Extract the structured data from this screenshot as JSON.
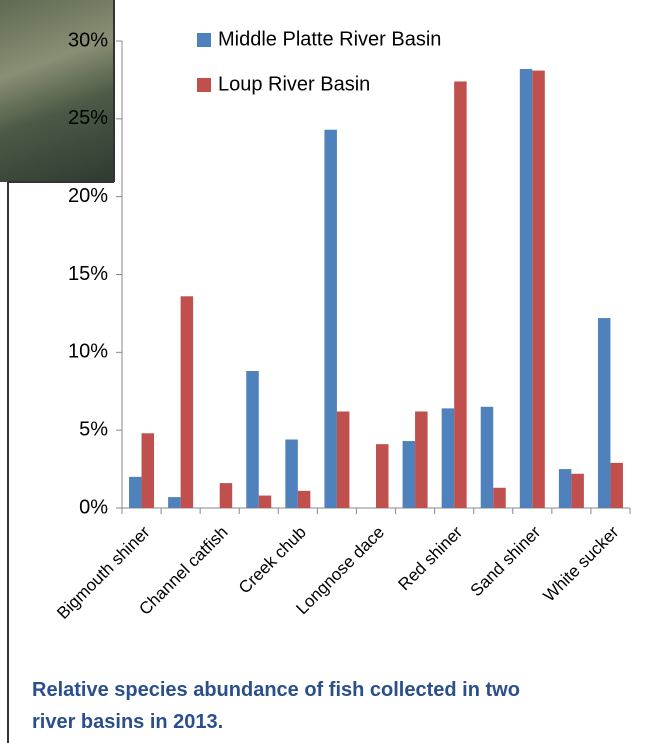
{
  "chart_data": {
    "type": "bar",
    "title": "Relative species abundance of fish collected in two river basins in 2013.",
    "categories": [
      "Bigmouth shiner",
      null,
      "Channel catfish",
      null,
      "Creek chub",
      null,
      "Longnose dace",
      null,
      "Red shiner",
      null,
      "Sand shiner",
      null,
      "White sucker"
    ],
    "series": [
      {
        "name": "Middle Platte River Basin",
        "color": "#4f81bd",
        "values": [
          2.0,
          0.7,
          0,
          8.8,
          4.4,
          24.3,
          0,
          4.3,
          6.4,
          6.5,
          28.2,
          2.5,
          12.2
        ]
      },
      {
        "name": "Loup River Basin",
        "color": "#c0504d",
        "values": [
          4.8,
          13.6,
          1.6,
          0.8,
          1.1,
          6.2,
          4.1,
          6.2,
          27.4,
          1.3,
          28.1,
          2.2,
          2.9
        ]
      }
    ],
    "ylim": [
      0,
      30
    ],
    "yticks": [
      {
        "value": 0,
        "label": "0%"
      },
      {
        "value": 5,
        "label": "5%"
      },
      {
        "value": 10,
        "label": "10%"
      },
      {
        "value": 15,
        "label": "15%"
      },
      {
        "value": 20,
        "label": "20%"
      },
      {
        "value": 25,
        "label": "25%"
      },
      {
        "value": 30,
        "label": "30%"
      }
    ],
    "legend": "top"
  }
}
